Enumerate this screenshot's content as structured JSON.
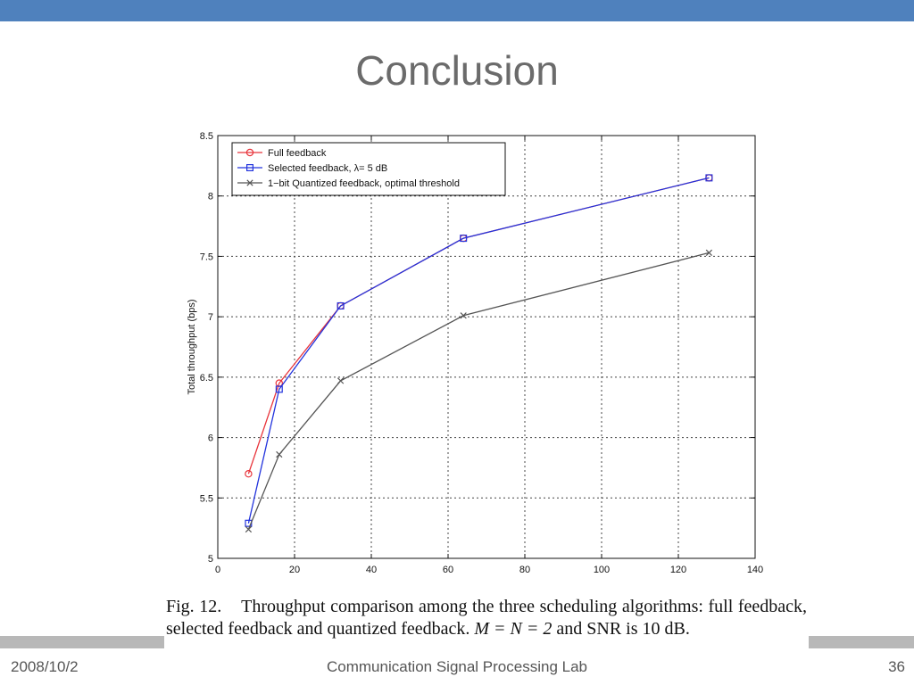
{
  "slide": {
    "title": "Conclusion",
    "caption": {
      "fig": "Fig. 12.",
      "text_a": "Throughput comparison among the three scheduling algorithms: full feedback, selected feedback and quantized feedback.",
      "math": "M = N = 2",
      "text_b": "and SNR is 10 dB."
    },
    "footer": {
      "date": "2008/10/2",
      "lab": "Communication Signal Processing Lab",
      "page": "36"
    }
  },
  "colors": {
    "top_bar": "#4f81bd",
    "full_feedback": "#e8333a",
    "selected_feedback": "#2233dd",
    "quantized_feedback": "#555555"
  },
  "chart_data": {
    "type": "line",
    "title": "",
    "xlabel": "",
    "ylabel": "Total throughput (bps)",
    "xlim": [
      0,
      140
    ],
    "ylim": [
      5,
      8.5
    ],
    "xticks": [
      "0",
      "20",
      "40",
      "60",
      "80",
      "100",
      "120",
      "140"
    ],
    "yticks": [
      "5",
      "5.5",
      "6",
      "6.5",
      "7",
      "7.5",
      "8",
      "8.5"
    ],
    "grid": true,
    "legend_position": "top-left",
    "x": [
      8,
      16,
      32,
      64,
      128
    ],
    "series": [
      {
        "name": "Full feedback",
        "marker": "circle",
        "color": "#e8333a",
        "values": [
          5.7,
          6.45,
          7.09,
          7.65,
          8.15
        ]
      },
      {
        "name": "Selected feedback, λ= 5 dB",
        "marker": "square",
        "color": "#2233dd",
        "values": [
          5.29,
          6.4,
          7.09,
          7.65,
          8.15
        ]
      },
      {
        "name": "1−bit Quantized feedback, optimal threshold",
        "marker": "x",
        "color": "#555555",
        "values": [
          5.24,
          5.86,
          6.47,
          7.01,
          7.53
        ]
      }
    ]
  }
}
